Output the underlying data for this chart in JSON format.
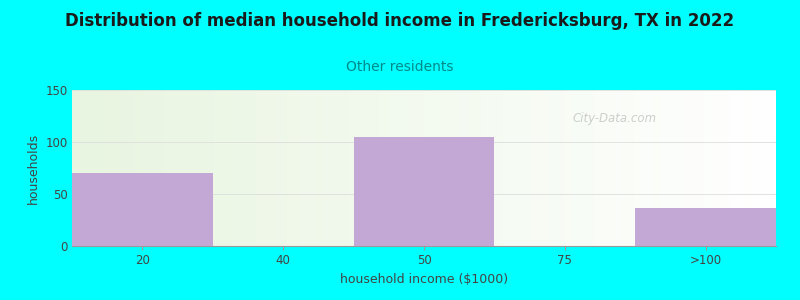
{
  "title": "Distribution of median household income in Fredericksburg, TX in 2022",
  "subtitle": "Other residents",
  "xlabel": "household income ($1000)",
  "ylabel": "households",
  "categories": [
    "20",
    "40",
    "50",
    "75",
    ">100"
  ],
  "values": [
    70,
    0,
    105,
    0,
    37
  ],
  "bar_color": "#C3A8D5",
  "ylim": [
    0,
    150
  ],
  "yticks": [
    0,
    50,
    100,
    150
  ],
  "background_color": "#00FFFF",
  "plot_bg_left_color": "#E8F5E0",
  "plot_bg_right_color": "#F8FAF5",
  "title_color": "#1a1a1a",
  "subtitle_color": "#008B8B",
  "axis_label_color": "#444444",
  "tick_color": "#444444",
  "grid_color": "#DDDDDD",
  "watermark_text": "City-Data.com",
  "watermark_color": "#BBBBBB",
  "title_fontsize": 12,
  "subtitle_fontsize": 10,
  "axis_label_fontsize": 9,
  "tick_fontsize": 8.5
}
